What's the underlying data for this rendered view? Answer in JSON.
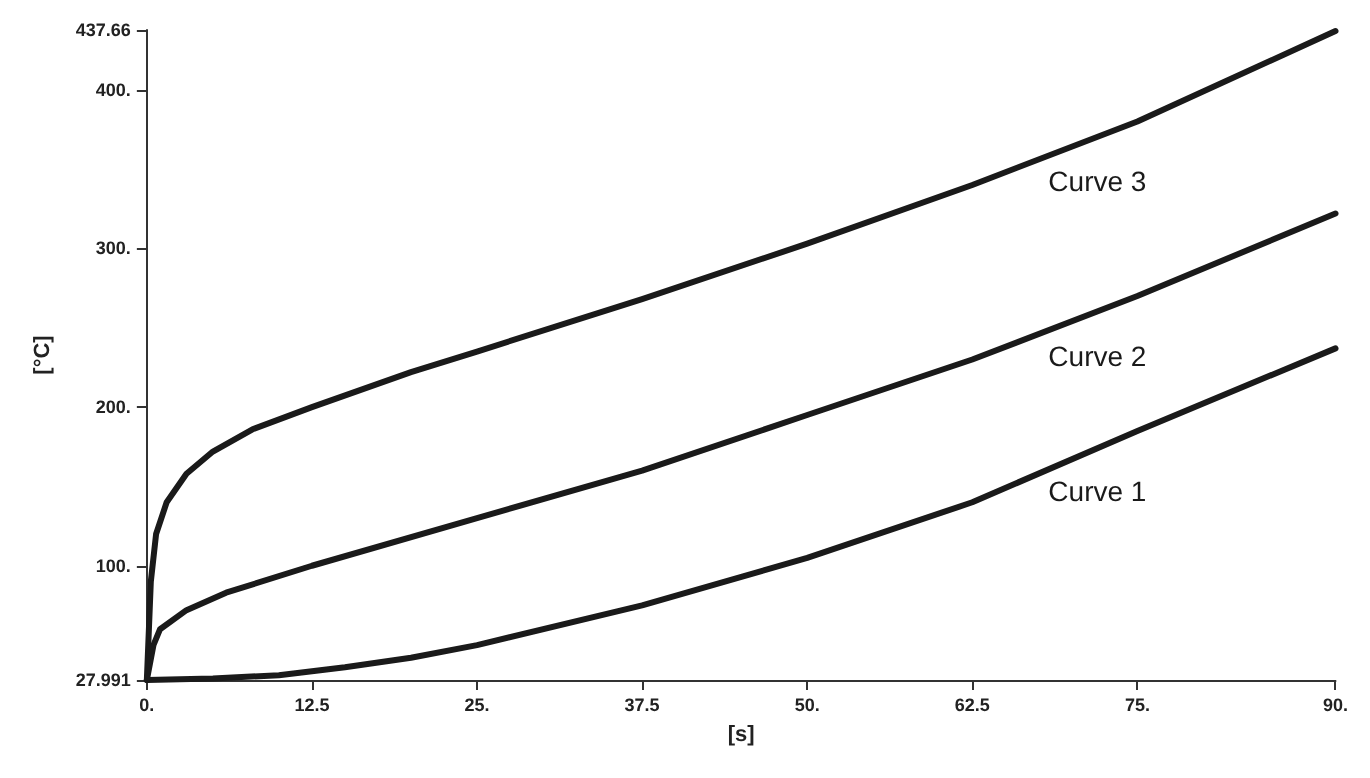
{
  "chart_data": {
    "type": "line",
    "xlabel": "[s]",
    "ylabel": "[°C]",
    "xlim": [
      0,
      90
    ],
    "ylim": [
      27.991,
      437.66
    ],
    "xticks": [
      {
        "value": 0,
        "label": "0."
      },
      12.5,
      {
        "value": 25,
        "label": "25."
      },
      37.5,
      {
        "value": 50,
        "label": "50."
      },
      62.5,
      {
        "value": 75,
        "label": "75."
      },
      {
        "value": 90,
        "label": "90."
      }
    ],
    "yticks": [
      27.991,
      {
        "value": 100,
        "label": "100."
      },
      {
        "value": 200,
        "label": "200."
      },
      {
        "value": 300,
        "label": "300."
      },
      {
        "value": 400,
        "label": "400."
      },
      437.66
    ],
    "grid": false,
    "legend": false,
    "marker": "none",
    "line_style": "solid",
    "series": [
      {
        "name": "Curve 1",
        "color": "#1a1a1a",
        "x": [
          0,
          5,
          10,
          15,
          20,
          25,
          37.5,
          50,
          62.5,
          75,
          90
        ],
        "values": [
          28,
          29,
          31,
          36,
          42,
          50,
          75,
          105,
          140,
          185,
          237
        ]
      },
      {
        "name": "Curve 2",
        "color": "#1a1a1a",
        "x": [
          0,
          0.5,
          1,
          3,
          6,
          12.5,
          25,
          37.5,
          50,
          62.5,
          75,
          90
        ],
        "values": [
          28,
          50,
          60,
          72,
          83,
          100,
          130,
          160,
          195,
          230,
          270,
          322
        ]
      },
      {
        "name": "Curve 3",
        "color": "#1a1a1a",
        "x": [
          0,
          0.3,
          0.7,
          1.5,
          3,
          5,
          8,
          12.5,
          20,
          25,
          37.5,
          50,
          62.5,
          75,
          90
        ],
        "values": [
          28,
          90,
          120,
          140,
          158,
          172,
          186,
          200,
          222,
          235,
          268,
          303,
          340,
          380,
          437
        ]
      }
    ]
  }
}
